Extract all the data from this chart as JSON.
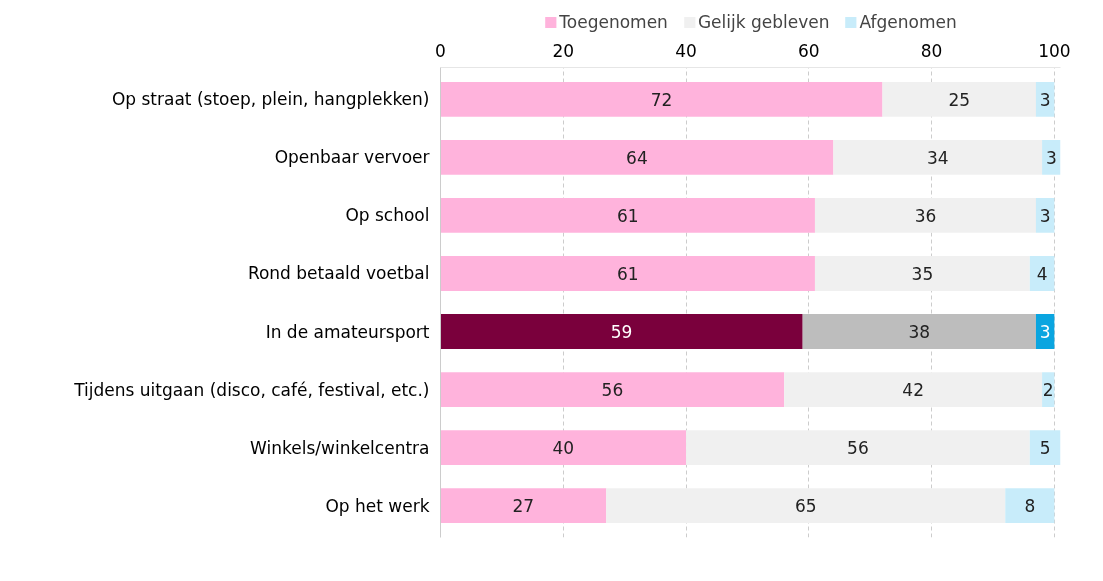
{
  "chart_data": {
    "type": "bar",
    "orientation": "horizontal",
    "stacked": true,
    "data_labels": true,
    "legend": "top",
    "grid": "x",
    "categories": [
      "Op straat (stoep, plein, hangplekken)",
      "Openbaar vervoer",
      "Op school",
      "Rond betaald voetbal",
      "In de amateursport",
      "Tijdens uitgaan (disco, café, festival, etc.)",
      "Winkels/winkelcentra",
      "Op het werk"
    ],
    "xlim": [
      0,
      101
    ],
    "xticks": [
      0,
      20,
      40,
      60,
      80,
      100
    ],
    "series": [
      {
        "name": "Toegenomen",
        "color": "#ffb3dc",
        "colors": [
          "#ffb3dc",
          "#ffb3dc",
          "#ffb3dc",
          "#ffb3dc",
          "#7a003c",
          "#ffb3dc",
          "#ffb3dc",
          "#ffb3dc"
        ],
        "values": [
          72,
          64,
          61,
          61,
          59,
          56,
          40,
          27
        ]
      },
      {
        "name": "Gelijk gebleven",
        "color": "#f0f0f0",
        "colors": [
          "#f0f0f0",
          "#f0f0f0",
          "#f0f0f0",
          "#f0f0f0",
          "#bdbdbd",
          "#f0f0f0",
          "#f0f0f0",
          "#f0f0f0"
        ],
        "values": [
          25,
          34,
          36,
          35,
          38,
          42,
          56,
          65
        ]
      },
      {
        "name": "Afgenomen",
        "color": "#c8ecfa",
        "colors": [
          "#c8ecfa",
          "#c8ecfa",
          "#c8ecfa",
          "#c8ecfa",
          "#0aa5e0",
          "#c8ecfa",
          "#c8ecfa",
          "#c8ecfa"
        ],
        "values": [
          3,
          3,
          3,
          4,
          3,
          2,
          5,
          8
        ]
      }
    ]
  }
}
